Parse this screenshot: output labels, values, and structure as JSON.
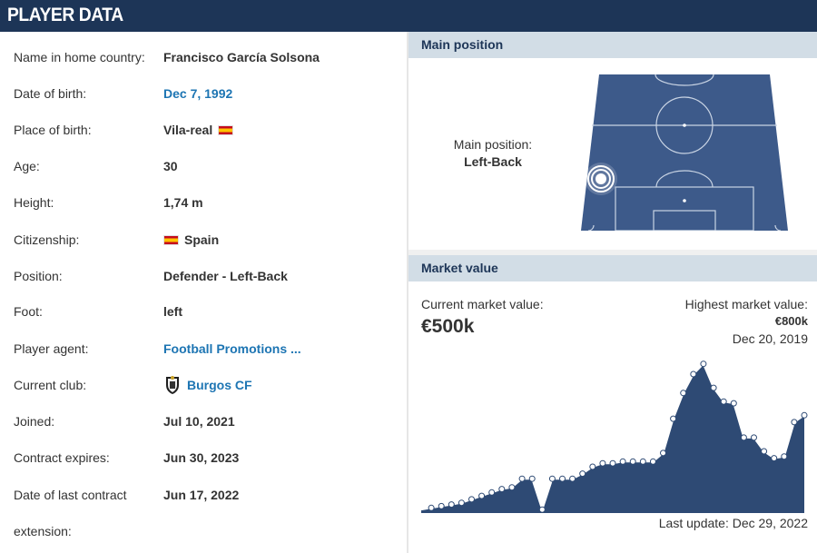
{
  "header": {
    "title": "PLAYER DATA"
  },
  "player": {
    "rows": [
      {
        "label": "Name in home country:",
        "value": "Francisco García Solsona",
        "link": false
      },
      {
        "label": "Date of birth:",
        "value": "Dec 7, 1992",
        "link": true
      },
      {
        "label": "Place of birth:",
        "value": "Vila-real",
        "link": false,
        "flag": "spain-flag"
      },
      {
        "label": "Age:",
        "value": "30",
        "link": false
      },
      {
        "label": "Height:",
        "value": "1,74 m",
        "link": false
      },
      {
        "label": "Citizenship:",
        "value": "Spain",
        "link": false,
        "flag": "spain-flag"
      },
      {
        "label": "Position:",
        "value": "Defender - Left-Back",
        "link": false
      },
      {
        "label": "Foot:",
        "value": "left",
        "link": false
      },
      {
        "label": "Player agent:",
        "value": "Football Promotions ...",
        "link": true
      },
      {
        "label": "Current club:",
        "value": "Burgos CF",
        "link": true,
        "crest": "club-crest-icon"
      },
      {
        "label": "Joined:",
        "value": "Jul 10, 2021",
        "link": false
      },
      {
        "label": "Contract expires:",
        "value": "Jun 30, 2023",
        "link": false
      },
      {
        "label": "Date of last contract",
        "value": "Jun 17, 2022",
        "link": false
      }
    ],
    "extra_label": "extension:"
  },
  "main_position": {
    "heading": "Main position",
    "label": "Main position:",
    "value": "Left-Back"
  },
  "market_value": {
    "heading": "Market value",
    "current_label": "Current market value:",
    "current_value": "€500k",
    "highest_label": "Highest market value:",
    "highest_value": "€800k",
    "highest_date": "Dec 20, 2019",
    "last_update": "Last update: Dec 29, 2022"
  },
  "colors": {
    "header_bg": "#1d3557",
    "section_bg": "#d2dde6",
    "link": "#1d75b3",
    "pitch": "#3d5a8a",
    "chart_fill": "#2e4a74"
  },
  "chart_data": {
    "type": "area",
    "series": [
      {
        "values": [
          0.02,
          0.03,
          0.04,
          0.05,
          0.06,
          0.08,
          0.1,
          0.12,
          0.14,
          0.15,
          0.2,
          0.2,
          0.02,
          0.2,
          0.2,
          0.2,
          0.23,
          0.27,
          0.29,
          0.29,
          0.3,
          0.3,
          0.3,
          0.3,
          0.35,
          0.55,
          0.7,
          0.81,
          0.87,
          0.73,
          0.65,
          0.64,
          0.44,
          0.44,
          0.36,
          0.32,
          0.33,
          0.53,
          0.57
        ]
      }
    ],
    "xlim": [
      0,
      38
    ],
    "grid": false,
    "legend": "none"
  }
}
